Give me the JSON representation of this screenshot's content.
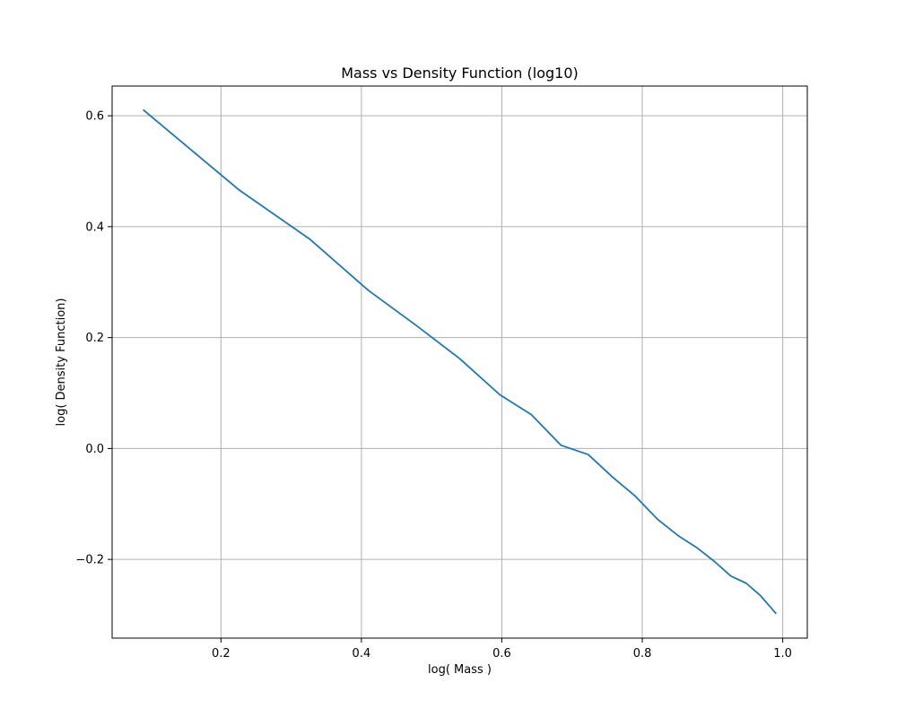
{
  "chart_data": {
    "type": "line",
    "title": "Mass vs Density Function (log10)",
    "xlabel": "log( Mass )",
    "ylabel": "log( Density Function)",
    "xlim": [
      0.045,
      1.035
    ],
    "ylim": [
      -0.342,
      0.6536
    ],
    "xticks": [
      0.2,
      0.4,
      0.6,
      0.8,
      1.0
    ],
    "xtick_labels": [
      "0.2",
      "0.4",
      "0.6",
      "0.8",
      "1.0"
    ],
    "yticks": [
      -0.2,
      0.0,
      0.2,
      0.4,
      0.6
    ],
    "ytick_labels": [
      "−0.2",
      "0.0",
      "0.2",
      "0.4",
      "0.6"
    ],
    "grid": true,
    "series": [
      {
        "color": "#1f77b4",
        "x": [
          0.09,
          0.225,
          0.327,
          0.41,
          0.478,
          0.54,
          0.597,
          0.642,
          0.684,
          0.723,
          0.758,
          0.79,
          0.822,
          0.852,
          0.879,
          0.903,
          0.926,
          0.948,
          0.968,
          0.99
        ],
        "y": [
          0.61,
          0.467,
          0.377,
          0.285,
          0.222,
          0.162,
          0.097,
          0.061,
          0.006,
          -0.011,
          -0.052,
          -0.086,
          -0.128,
          -0.158,
          -0.18,
          -0.204,
          -0.23,
          -0.243,
          -0.265,
          -0.297
        ]
      }
    ]
  }
}
